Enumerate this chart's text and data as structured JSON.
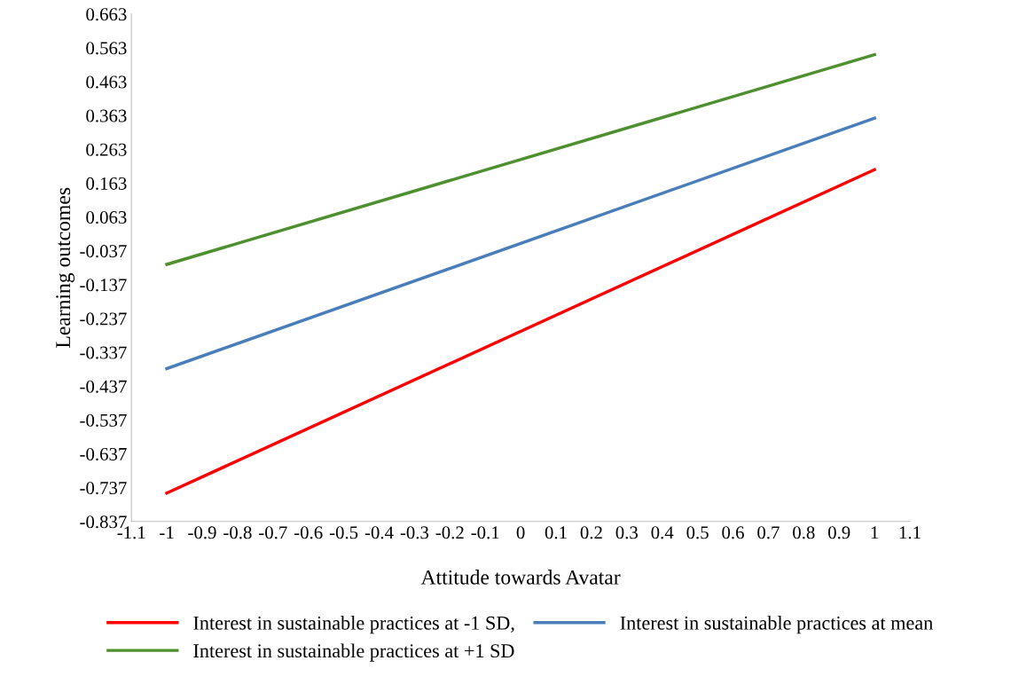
{
  "chart_data": {
    "type": "line",
    "xlabel": "Attitude towards Avatar",
    "ylabel": "Learning outcomes",
    "x": [
      -1,
      1
    ],
    "series": [
      {
        "name": "Interest in sustainable practices at -1 SD,",
        "color": "#ff0000",
        "values": [
          -0.753,
          0.203
        ]
      },
      {
        "name": "Interest in sustainable practices at mean",
        "color": "#4a7ebb",
        "values": [
          -0.385,
          0.355
        ]
      },
      {
        "name": "Interest in sustainable practices at +1 SD",
        "color": "#4e8f2f",
        "values": [
          -0.077,
          0.543
        ]
      }
    ],
    "xlim": [
      -1.1,
      1.1
    ],
    "xticks": [
      -1.1,
      -1,
      -0.9,
      -0.8,
      -0.7,
      -0.6,
      -0.5,
      -0.4,
      -0.3,
      -0.2,
      -0.1,
      0,
      0.1,
      0.2,
      0.3,
      0.4,
      0.5,
      0.6,
      0.7,
      0.8,
      0.9,
      1,
      1.1
    ],
    "ylim": [
      -0.837,
      0.663
    ],
    "yticks": [
      -0.837,
      -0.737,
      -0.637,
      -0.537,
      -0.437,
      -0.337,
      -0.237,
      -0.137,
      -0.037,
      0.063,
      0.163,
      0.263,
      0.363,
      0.463,
      0.563,
      0.663
    ],
    "grid": false,
    "legend": "bottom",
    "marker": "none",
    "line_style": "solid"
  }
}
